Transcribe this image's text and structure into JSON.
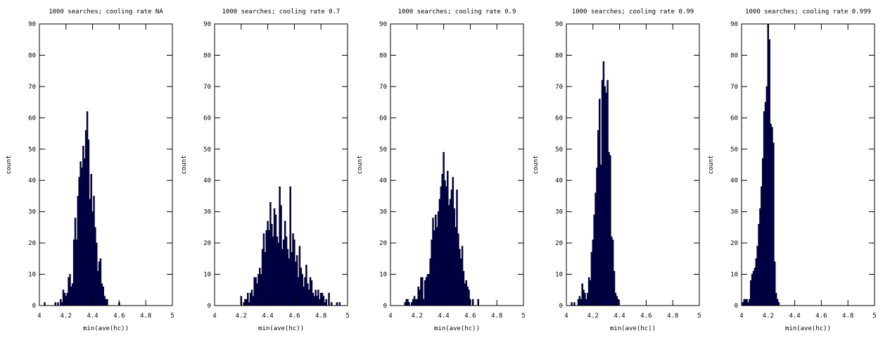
{
  "chart_data": [
    {
      "type": "bar",
      "title": "1000 searches; cooling rate NA",
      "xlabel": "min(ave(hc))",
      "ylabel": "count",
      "xlim": [
        4,
        5
      ],
      "ylim": [
        0,
        90
      ],
      "xticks": [
        "4",
        "4.2",
        "4.4",
        "4.6",
        "4.8",
        "5"
      ],
      "yticks": [
        "0",
        "10",
        "20",
        "30",
        "40",
        "50",
        "60",
        "70",
        "80",
        "90"
      ],
      "grid": false,
      "bar_color": "#000066",
      "x": [
        4.04,
        4.12,
        4.14,
        4.16,
        4.17,
        4.18,
        4.19,
        4.2,
        4.21,
        4.22,
        4.23,
        4.24,
        4.25,
        4.26,
        4.27,
        4.28,
        4.29,
        4.3,
        4.31,
        4.32,
        4.33,
        4.34,
        4.35,
        4.36,
        4.37,
        4.38,
        4.39,
        4.4,
        4.41,
        4.42,
        4.43,
        4.44,
        4.45,
        4.46,
        4.47,
        4.48,
        4.49,
        4.5,
        4.51,
        4.6
      ],
      "values": [
        1,
        1,
        1,
        2,
        1,
        5,
        4,
        3,
        4,
        9,
        10,
        6,
        7,
        21,
        28,
        21,
        35,
        41,
        46,
        44,
        51,
        47,
        56,
        62,
        53,
        34,
        42,
        30,
        35,
        25,
        20,
        11,
        14,
        15,
        7,
        6,
        3,
        2,
        2,
        1
      ]
    },
    {
      "type": "bar",
      "title": "1000 searches; cooling rate 0.7",
      "xlabel": "min(ave(hc))",
      "ylabel": "count",
      "xlim": [
        4,
        5
      ],
      "ylim": [
        0,
        90
      ],
      "xticks": [
        "4",
        "4.2",
        "4.4",
        "4.6",
        "4.8",
        "5"
      ],
      "yticks": [
        "0",
        "10",
        "20",
        "30",
        "40",
        "50",
        "60",
        "70",
        "80",
        "90"
      ],
      "grid": false,
      "bar_color": "#000066",
      "x": [
        4.2,
        4.22,
        4.23,
        4.24,
        4.25,
        4.26,
        4.27,
        4.28,
        4.29,
        4.3,
        4.31,
        4.32,
        4.33,
        4.34,
        4.35,
        4.36,
        4.37,
        4.38,
        4.39,
        4.4,
        4.41,
        4.42,
        4.43,
        4.44,
        4.45,
        4.46,
        4.47,
        4.48,
        4.49,
        4.5,
        4.51,
        4.52,
        4.53,
        4.54,
        4.55,
        4.56,
        4.57,
        4.58,
        4.59,
        4.6,
        4.61,
        4.62,
        4.63,
        4.64,
        4.65,
        4.66,
        4.67,
        4.68,
        4.69,
        4.7,
        4.71,
        4.72,
        4.73,
        4.74,
        4.75,
        4.76,
        4.77,
        4.78,
        4.79,
        4.8,
        4.81,
        4.82,
        4.83,
        4.84,
        4.86,
        4.88,
        4.92,
        4.94
      ],
      "values": [
        3,
        1,
        2,
        2,
        4,
        1,
        4,
        5,
        3,
        9,
        9,
        7,
        10,
        12,
        10,
        18,
        23,
        17,
        24,
        27,
        24,
        33,
        26,
        22,
        31,
        29,
        22,
        20,
        38,
        32,
        18,
        21,
        27,
        22,
        18,
        15,
        38,
        17,
        23,
        21,
        14,
        16,
        9,
        19,
        12,
        10,
        6,
        9,
        13,
        7,
        5,
        9,
        8,
        4,
        3,
        5,
        3,
        5,
        2,
        4,
        4,
        3,
        1,
        2,
        4,
        1,
        1,
        1
      ]
    },
    {
      "type": "bar",
      "title": "1000 searches; cooling rate 0.9",
      "xlabel": "min(ave(hc))",
      "ylabel": "count",
      "xlim": [
        4,
        5
      ],
      "ylim": [
        0,
        90
      ],
      "xticks": [
        "4",
        "4.2",
        "4.4",
        "4.6",
        "4.8",
        "5"
      ],
      "yticks": [
        "0",
        "10",
        "20",
        "30",
        "40",
        "50",
        "60",
        "70",
        "80",
        "90"
      ],
      "grid": false,
      "bar_color": "#000066",
      "x": [
        4.11,
        4.12,
        4.13,
        4.14,
        4.16,
        4.17,
        4.18,
        4.19,
        4.2,
        4.21,
        4.22,
        4.23,
        4.24,
        4.25,
        4.26,
        4.27,
        4.28,
        4.29,
        4.3,
        4.31,
        4.32,
        4.33,
        4.34,
        4.35,
        4.36,
        4.37,
        4.38,
        4.39,
        4.4,
        4.41,
        4.42,
        4.43,
        4.44,
        4.45,
        4.46,
        4.47,
        4.48,
        4.49,
        4.5,
        4.51,
        4.52,
        4.53,
        4.54,
        4.55,
        4.56,
        4.57,
        4.58,
        4.59,
        4.6,
        4.62,
        4.66
      ],
      "values": [
        1,
        2,
        2,
        1,
        1,
        2,
        3,
        2,
        2,
        6,
        5,
        9,
        9,
        2,
        8,
        9,
        10,
        10,
        15,
        21,
        28,
        24,
        29,
        25,
        30,
        34,
        38,
        42,
        49,
        40,
        38,
        43,
        32,
        34,
        37,
        41,
        31,
        25,
        37,
        23,
        18,
        15,
        19,
        11,
        7,
        8,
        6,
        5,
        2,
        2,
        2
      ]
    },
    {
      "type": "bar",
      "title": "1000 searches; cooling rate 0.99",
      "xlabel": "min(ave(hc))",
      "ylabel": "count",
      "xlim": [
        4,
        5
      ],
      "ylim": [
        0,
        90
      ],
      "xticks": [
        "4",
        "4.2",
        "4.4",
        "4.6",
        "4.8",
        "5"
      ],
      "yticks": [
        "0",
        "10",
        "20",
        "30",
        "40",
        "50",
        "60",
        "70",
        "80",
        "90"
      ],
      "grid": false,
      "bar_color": "#000066",
      "x": [
        4.04,
        4.06,
        4.09,
        4.1,
        4.11,
        4.12,
        4.13,
        4.14,
        4.15,
        4.16,
        4.17,
        4.18,
        4.19,
        4.2,
        4.21,
        4.22,
        4.23,
        4.24,
        4.25,
        4.26,
        4.27,
        4.28,
        4.29,
        4.3,
        4.31,
        4.32,
        4.33,
        4.34,
        4.35,
        4.36,
        4.37,
        4.38,
        4.39
      ],
      "values": [
        1,
        1,
        2,
        3,
        2,
        7,
        5,
        4,
        2,
        4,
        9,
        8,
        17,
        21,
        29,
        36,
        44,
        56,
        66,
        45,
        72,
        78,
        70,
        68,
        72,
        49,
        48,
        22,
        21,
        11,
        4,
        3,
        2
      ]
    },
    {
      "type": "bar",
      "title": "1000 searches; cooling rate 0.999",
      "xlabel": "min(ave(hc))",
      "ylabel": "count",
      "xlim": [
        4,
        5
      ],
      "ylim": [
        0,
        90
      ],
      "xticks": [
        "4",
        "4.2",
        "4.4",
        "4.6",
        "4.8",
        "5"
      ],
      "yticks": [
        "0",
        "10",
        "20",
        "30",
        "40",
        "50",
        "60",
        "70",
        "80",
        "90"
      ],
      "grid": false,
      "bar_color": "#000066",
      "x": [
        4.01,
        4.02,
        4.03,
        4.04,
        4.05,
        4.06,
        4.07,
        4.08,
        4.09,
        4.1,
        4.11,
        4.12,
        4.13,
        4.14,
        4.15,
        4.16,
        4.17,
        4.18,
        4.19,
        4.2,
        4.21,
        4.22,
        4.23,
        4.24,
        4.25,
        4.26,
        4.27,
        4.28
      ],
      "values": [
        1,
        2,
        2,
        2,
        1,
        2,
        8,
        10,
        11,
        12,
        15,
        19,
        26,
        31,
        38,
        47,
        62,
        65,
        70,
        90,
        85,
        58,
        57,
        52,
        14,
        4,
        2,
        1
      ]
    }
  ]
}
